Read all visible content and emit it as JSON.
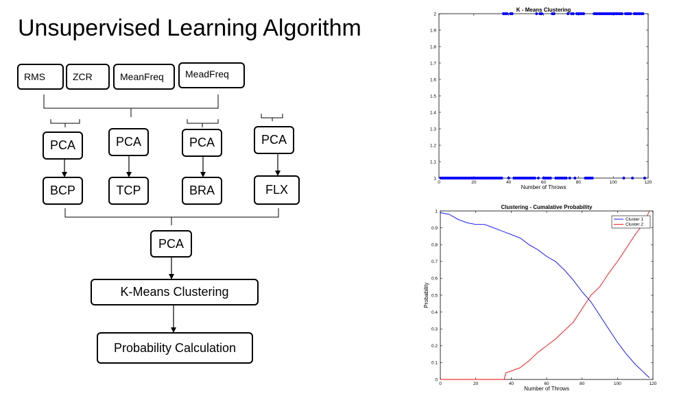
{
  "title": "Unsupervised Learning Algorithm",
  "features": [
    "RMS",
    "ZCR",
    "MeanFreq",
    "MeadFreq"
  ],
  "pca_label": "PCA",
  "components": [
    "BCP",
    "TCP",
    "BRA",
    "FLX"
  ],
  "final_pca": "PCA",
  "kmeans_label": "K-Means Clustering",
  "probability_label": "Probability Calculation",
  "chart_data": [
    {
      "type": "scatter",
      "title": "K - Means Clustering",
      "xlabel": "Number of Throws",
      "ylabel": "",
      "xlim": [
        0,
        120
      ],
      "ylim": [
        1,
        2
      ],
      "xticks": [
        0,
        20,
        40,
        60,
        80,
        100,
        120
      ],
      "yticks": [
        1,
        1.1,
        1.2,
        1.3,
        1.4,
        1.5,
        1.6,
        1.7,
        1.8,
        1.9,
        2
      ],
      "color": "#0000ff",
      "series": [
        {
          "x": [
            37,
            38,
            39,
            41,
            42,
            56,
            58,
            59,
            65,
            66,
            74,
            76,
            77,
            79,
            80,
            81,
            82,
            83,
            89,
            90,
            91,
            92,
            93,
            94,
            95,
            96,
            97,
            98,
            99,
            100,
            101,
            102,
            103,
            104,
            105,
            107,
            108,
            109,
            110,
            112,
            113,
            114,
            115,
            116,
            117
          ],
          "y_value": 2
        },
        {
          "x": [
            1,
            2,
            3,
            4,
            5,
            6,
            7,
            8,
            9,
            10,
            11,
            12,
            13,
            14,
            15,
            16,
            17,
            18,
            19,
            20,
            21,
            22,
            23,
            24,
            25,
            26,
            27,
            28,
            29,
            30,
            31,
            32,
            33,
            34,
            35,
            36,
            40,
            43,
            44,
            45,
            46,
            47,
            48,
            49,
            50,
            51,
            52,
            53,
            54,
            55,
            57,
            60,
            61,
            62,
            63,
            64,
            67,
            68,
            69,
            70,
            71,
            72,
            73,
            75,
            78,
            84,
            85,
            86,
            87,
            88,
            106,
            111,
            118
          ],
          "y_value": 1
        }
      ]
    },
    {
      "type": "line",
      "title": "Clustering - Cumalative Probability",
      "xlabel": "Number of Throws",
      "ylabel": "Probability",
      "xlim": [
        0,
        120
      ],
      "ylim": [
        0,
        1
      ],
      "xticks": [
        0,
        20,
        40,
        60,
        80,
        100,
        120
      ],
      "yticks": [
        0,
        0.1,
        0.2,
        0.3,
        0.4,
        0.5,
        0.6,
        0.7,
        0.8,
        0.9,
        1
      ],
      "legend": "top-right",
      "series": [
        {
          "name": "Cluster 1",
          "color": "#0000ff",
          "x": [
            0,
            5,
            10,
            15,
            20,
            25,
            30,
            35,
            40,
            45,
            50,
            55,
            60,
            65,
            70,
            75,
            80,
            85,
            90,
            95,
            100,
            105,
            110,
            115,
            118
          ],
          "y": [
            0.99,
            0.98,
            0.95,
            0.93,
            0.92,
            0.92,
            0.9,
            0.88,
            0.86,
            0.84,
            0.8,
            0.77,
            0.73,
            0.7,
            0.65,
            0.59,
            0.52,
            0.46,
            0.38,
            0.3,
            0.22,
            0.15,
            0.09,
            0.04,
            0.01
          ]
        },
        {
          "name": "Cluster 2",
          "color": "#ff0000",
          "x": [
            0,
            10,
            20,
            30,
            36,
            37,
            40,
            45,
            50,
            55,
            60,
            65,
            70,
            75,
            80,
            85,
            90,
            95,
            100,
            105,
            110,
            115,
            118
          ],
          "y": [
            0,
            0,
            0,
            0,
            0,
            0.04,
            0.05,
            0.07,
            0.11,
            0.16,
            0.2,
            0.24,
            0.29,
            0.34,
            0.42,
            0.5,
            0.55,
            0.63,
            0.7,
            0.78,
            0.86,
            0.93,
            1.0
          ]
        }
      ]
    }
  ]
}
